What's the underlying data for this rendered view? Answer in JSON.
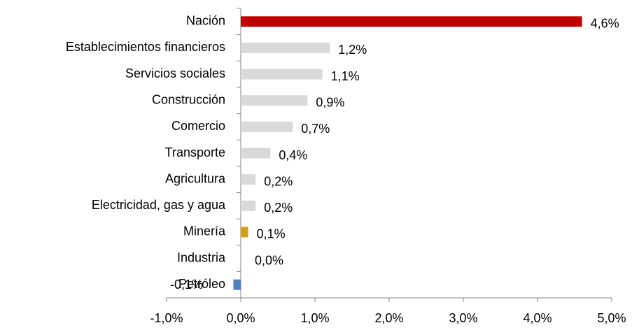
{
  "chart_data": {
    "type": "barh",
    "categories": [
      "Nación",
      "Establecimientos financieros",
      "Servicios sociales",
      "Construcción",
      "Comercio",
      "Transporte",
      "Agricultura",
      "Electricidad, gas y agua",
      "Minería",
      "Industria",
      "Petróleo"
    ],
    "values": [
      4.6,
      1.2,
      1.1,
      0.9,
      0.7,
      0.4,
      0.2,
      0.2,
      0.1,
      0.0,
      -0.1
    ],
    "value_labels": [
      "4,6%",
      "1,2%",
      "1,1%",
      "0,9%",
      "0,7%",
      "0,4%",
      "0,2%",
      "0,2%",
      "0,1%",
      "0,0%",
      "-0,1%"
    ],
    "colors": [
      "#c00000",
      "#d9d9d9",
      "#d9d9d9",
      "#d9d9d9",
      "#d9d9d9",
      "#d9d9d9",
      "#d9d9d9",
      "#d9d9d9",
      "#d4a017",
      "#d9d9d9",
      "#4f81bd"
    ],
    "xlim": [
      -1,
      5
    ],
    "xticks": [
      {
        "value": -1,
        "label": "-1,0%"
      },
      {
        "value": 0,
        "label": "0,0%"
      },
      {
        "value": 1,
        "label": "1,0%"
      },
      {
        "value": 2,
        "label": "2,0%"
      },
      {
        "value": 3,
        "label": "3,0%"
      },
      {
        "value": 4,
        "label": "4,0%"
      },
      {
        "value": 5,
        "label": "5,0%"
      }
    ]
  }
}
